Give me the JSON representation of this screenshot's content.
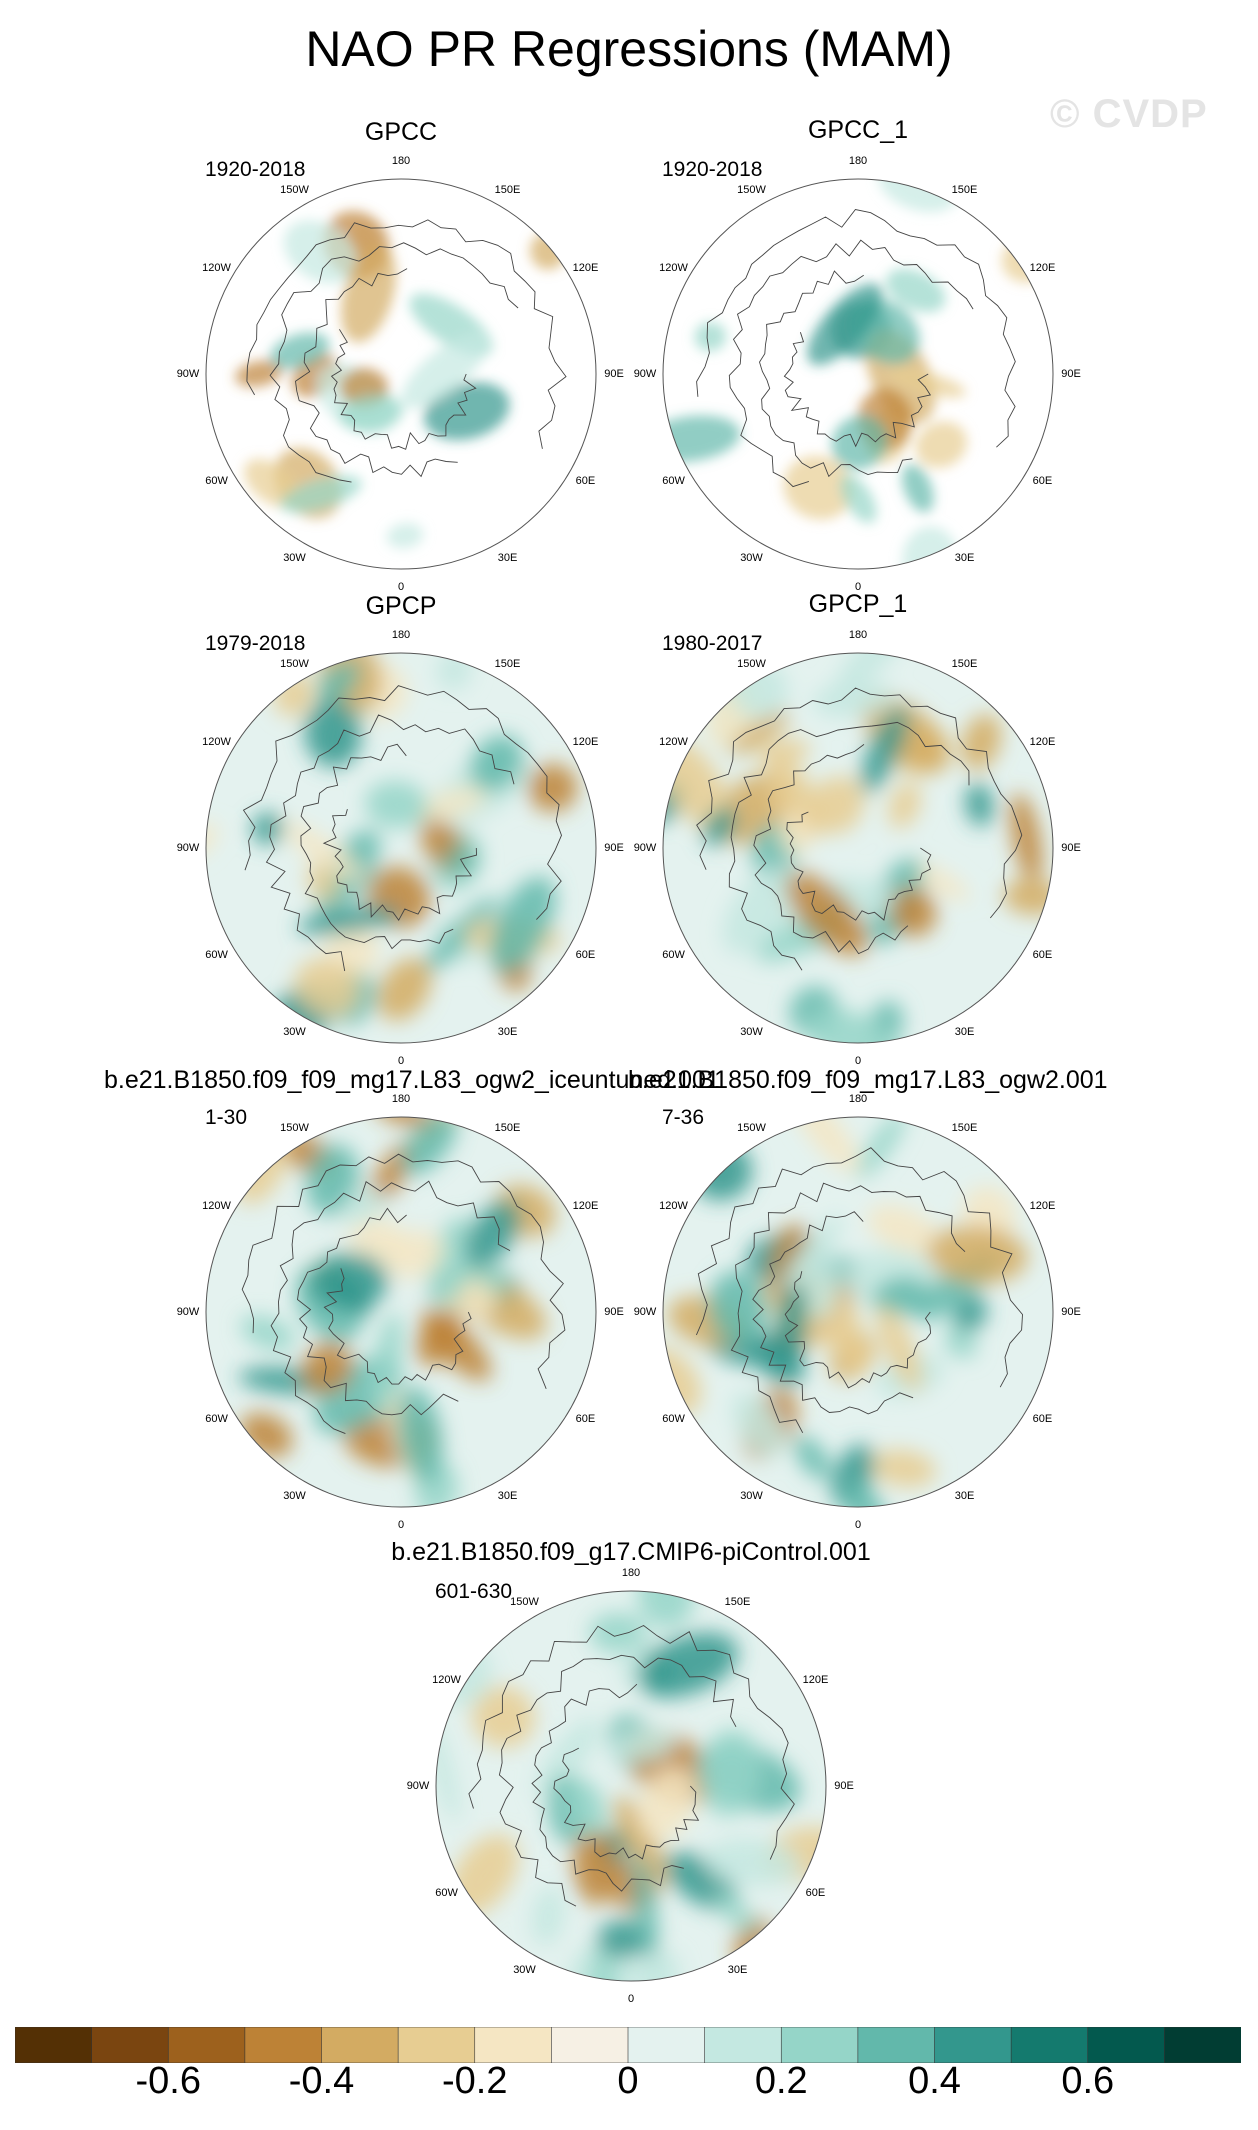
{
  "title": "NAO PR Regressions (MAM)",
  "watermark": "© CVDP",
  "lon_labels": [
    "180",
    "150E",
    "120E",
    "90E",
    "60E",
    "30E",
    "0",
    "30W",
    "60W",
    "90W",
    "120W",
    "150W"
  ],
  "panels": [
    {
      "title": "GPCC",
      "period": "1920-2018",
      "type": "station"
    },
    {
      "title": "GPCC_1",
      "period": "1920-2018",
      "type": "station"
    },
    {
      "title": "GPCP",
      "period": "1979-2018",
      "type": "satellite"
    },
    {
      "title": "GPCP_1",
      "period": "1980-2017",
      "type": "satellite"
    },
    {
      "title": "b.e21.B1850.f09_f09_mg17.L83_ogw2_iceuntuned.001",
      "period": "1-30",
      "type": "model"
    },
    {
      "title": "b.e21.B1850.f09_f09_mg17.L83_ogw2.001",
      "period": "7-36",
      "type": "model"
    },
    {
      "title": "b.e21.B1850.f09_g17.CMIP6-piControl.001",
      "period": "601-630",
      "type": "model"
    }
  ],
  "colorbar": {
    "colors": [
      "#543005",
      "#7a4510",
      "#9d611d",
      "#bd8236",
      "#d3ab62",
      "#e7cd92",
      "#f5e6c3",
      "#f6f0e4",
      "#e4f2ef",
      "#c4e8e1",
      "#95d5c8",
      "#62b8ab",
      "#33978d",
      "#147a6e",
      "#03594e",
      "#013d33"
    ],
    "labels": [
      "-0.6",
      "-0.4",
      "-0.2",
      "0",
      "0.2",
      "0.4",
      "0.6"
    ],
    "label_values": [
      -0.6,
      -0.4,
      -0.2,
      0,
      0.2,
      0.4,
      0.6
    ],
    "min": -0.8,
    "max": 0.8
  }
}
